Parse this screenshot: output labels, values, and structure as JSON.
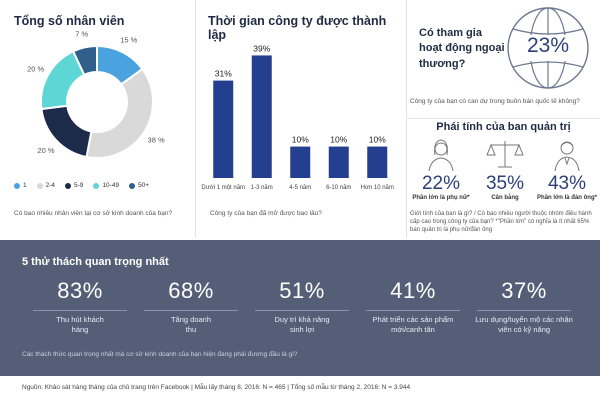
{
  "employees": {
    "title": "Tổng số nhân viên",
    "question": "Có bao nhiêu nhân viên tại cơ sở kinh doanh của bạn?",
    "legend": [
      {
        "label": "1",
        "color": "#4aa3df"
      },
      {
        "label": "2-4",
        "color": "#d9d9d9"
      },
      {
        "label": "5-9",
        "color": "#1c2b4a"
      },
      {
        "label": "10-49",
        "color": "#5ed6d6"
      },
      {
        "label": "50+",
        "color": "#2f5f8a"
      }
    ]
  },
  "founded": {
    "title": "Thời gian công ty được thành lập",
    "question": "Công ty của bạn đã mở được bao lâu?"
  },
  "trade": {
    "question_title": "Có tham gia hoạt động ngoại thương?",
    "value": "23%",
    "question": "Công ty của bạn có can dự trong buôn bán quốc tế không?"
  },
  "board": {
    "title": "Phái tính của ban quản trị",
    "items": [
      {
        "value": "22%",
        "label": "Phần lớn là phụ nữ*",
        "icon": "woman-icon"
      },
      {
        "value": "35%",
        "label": "Cân bằng",
        "icon": "scale-icon"
      },
      {
        "value": "43%",
        "label": "Phần lớn là đàn ông*",
        "icon": "man-icon"
      }
    ],
    "question": "Giới tính của ban là gì? / Có bao nhiêu người thuộc nhóm điều hành cấp cao trong công ty của bạn? *\"Phần lớn\" có nghĩa là ít nhất 65% ban quản trị là phụ nữ/đàn ông"
  },
  "challenges": {
    "title": "5 thử thách quan trọng nhất",
    "items": [
      {
        "value": "83%",
        "label": "Thu hút khách hàng"
      },
      {
        "value": "68%",
        "label": "Tăng doanh thu"
      },
      {
        "value": "51%",
        "label": "Duy trì khả năng sinh lợi"
      },
      {
        "value": "41%",
        "label": "Phát triển các sản phẩm mới/canh tân"
      },
      {
        "value": "37%",
        "label": "Lưu dụng/tuyển mộ các nhân viên có kỹ năng"
      }
    ],
    "question": "Các thách thức quan trọng nhất mà cơ sở kinh doanh của bạn hiện đang phải đương đầu là gì?"
  },
  "footer": {
    "text": "Nguồn: Khảo sát hàng tháng của chủ trang trên Facebook | Mẫu lấy tháng 8, 2016: N = 465 | Tổng số mẫu từ tháng 2, 2016: N = 3.944"
  },
  "chart_data": [
    {
      "type": "pie",
      "title": "Tổng số nhân viên",
      "categories": [
        "1",
        "2-4",
        "5-9",
        "10-49",
        "50+"
      ],
      "values": [
        15,
        38,
        20,
        20,
        7
      ],
      "colors": [
        "#4aa3df",
        "#d9d9d9",
        "#1c2b4a",
        "#5ed6d6",
        "#2f5f8a"
      ],
      "value_labels": [
        "15 %",
        "38 %",
        "20 %",
        "20 %",
        "7 %"
      ]
    },
    {
      "type": "bar",
      "title": "Thời gian công ty được thành lập",
      "categories": [
        "Dưới 1 một năm",
        "1-3 năm",
        "4-5 năm",
        "6-10 năm",
        "Hơn 10 năm"
      ],
      "values": [
        31,
        39,
        10,
        10,
        10
      ],
      "value_labels": [
        "31%",
        "39%",
        "10%",
        "10%",
        "10%"
      ],
      "color": "#243f8f",
      "ylim": [
        0,
        42
      ]
    }
  ]
}
